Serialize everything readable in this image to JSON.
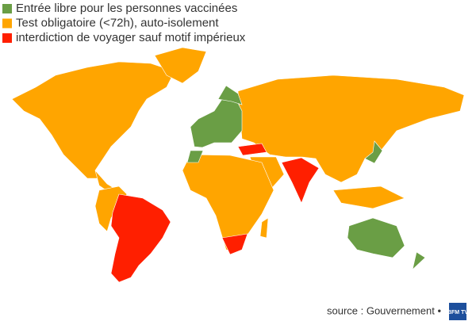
{
  "legend": {
    "items": [
      {
        "label": "Entrée libre pour les personnes vaccinées",
        "color": "#6a9e45"
      },
      {
        "label": "Test obligatoire (<72h), auto-isolement",
        "color": "#ffa500"
      },
      {
        "label": "interdiction de voyager sauf motif impérieux",
        "color": "#ff1f00"
      }
    ]
  },
  "source": "source : Gouvernement •",
  "logo": "BFM TV"
}
